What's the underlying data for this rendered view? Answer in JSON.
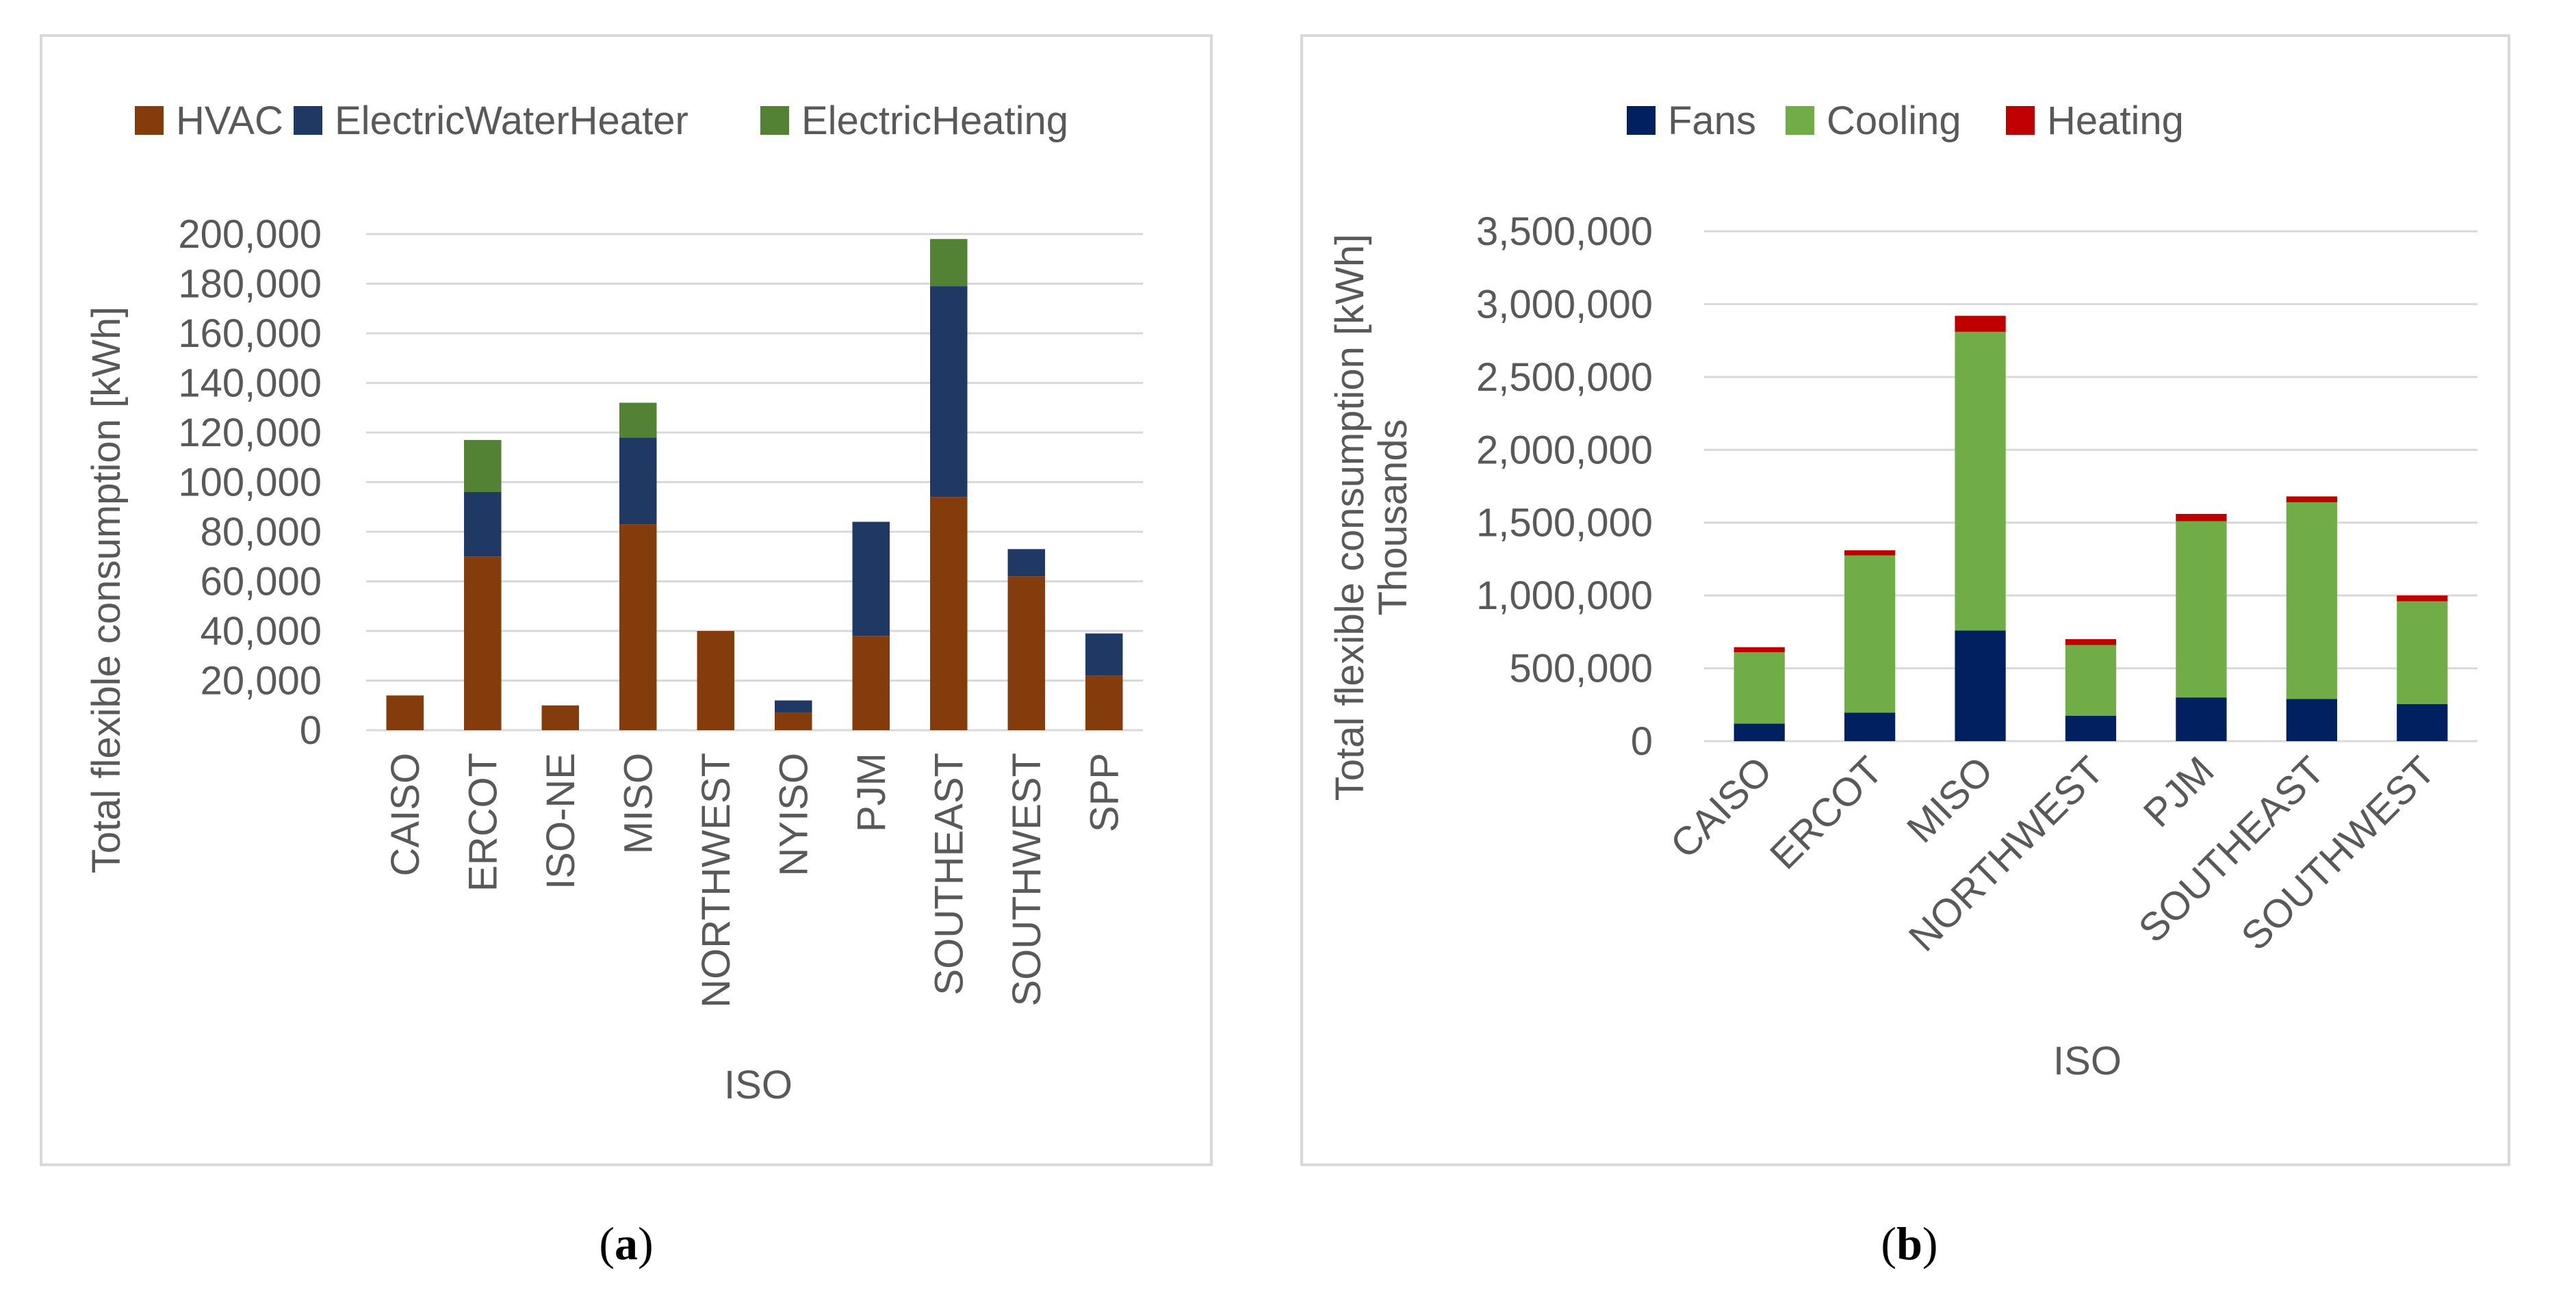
{
  "chart_data": [
    {
      "type": "bar",
      "stacked": true,
      "caption_letter": "a",
      "title": "",
      "xlabel": "ISO",
      "ylabel": "Total flexible consumption [kWh]",
      "ylabel2": "",
      "ylim": [
        0,
        200000
      ],
      "yticks": [
        "0",
        "20,000",
        "40,000",
        "60,000",
        "80,000",
        "100,000",
        "120,000",
        "140,000",
        "160,000",
        "180,000",
        "200,000"
      ],
      "grid": true,
      "legend_position": "top",
      "categories": [
        "CAISO",
        "ERCOT",
        "ISO-NE",
        "MISO",
        "NORTHWEST",
        "NYISO",
        "PJM",
        "SOUTHEAST",
        "SOUTHWEST",
        "SPP"
      ],
      "series": [
        {
          "name": "HVAC",
          "color": "#843c0c",
          "values": [
            14000,
            70000,
            10000,
            83000,
            40000,
            7000,
            38000,
            94000,
            62000,
            22000
          ]
        },
        {
          "name": "ElectricWaterHeater",
          "color": "#203864",
          "values": [
            0,
            26000,
            0,
            35000,
            0,
            5000,
            46000,
            85000,
            11000,
            17000
          ]
        },
        {
          "name": "ElectricHeating",
          "color": "#548235",
          "values": [
            0,
            21000,
            0,
            14000,
            0,
            0,
            0,
            19000,
            0,
            0
          ]
        }
      ]
    },
    {
      "type": "bar",
      "stacked": true,
      "caption_letter": "b",
      "title": "",
      "xlabel": "ISO",
      "ylabel": "Total flexible consumption [kWh]",
      "ylabel2": "Thousands",
      "ylim": [
        0,
        3500000
      ],
      "yticks": [
        "0",
        "500,000",
        "1,000,000",
        "1,500,000",
        "2,000,000",
        "2,500,000",
        "3,000,000",
        "3,500,000"
      ],
      "grid": true,
      "legend_position": "top",
      "categories": [
        "CAISO",
        "ERCOT",
        "MISO",
        "NORTHWEST",
        "PJM",
        "SOUTHEAST",
        "SOUTHWEST"
      ],
      "series": [
        {
          "name": "Fans",
          "color": "#002060",
          "values": [
            120000,
            195000,
            760000,
            175000,
            300000,
            290000,
            255000
          ]
        },
        {
          "name": "Cooling",
          "color": "#70ad47",
          "values": [
            490000,
            1080000,
            2050000,
            485000,
            1210000,
            1350000,
            705000
          ]
        },
        {
          "name": "Heating",
          "color": "#c00000",
          "values": [
            35000,
            35000,
            110000,
            40000,
            50000,
            40000,
            40000
          ]
        }
      ]
    }
  ]
}
